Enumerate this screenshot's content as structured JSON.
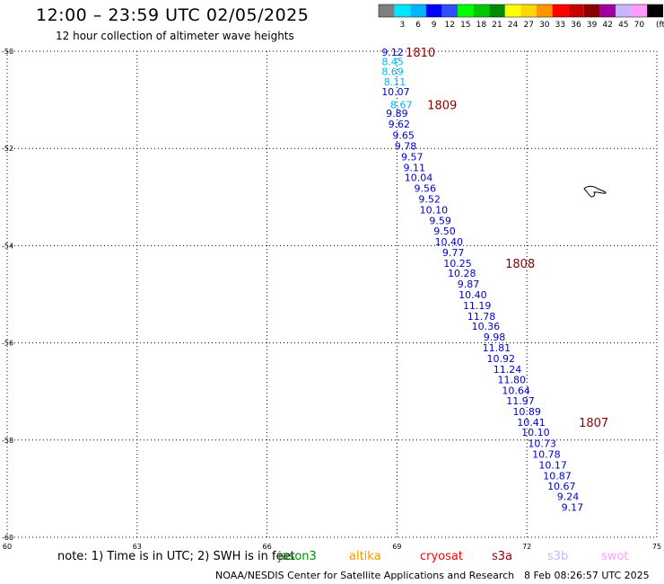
{
  "header": {
    "title": "12:00 – 23:59 UTC 02/05/2025",
    "subtitle": "12 hour collection of altimeter wave heights"
  },
  "colorbar": {
    "unit": "(ft)",
    "bins": [
      {
        "label": "",
        "color": "#7f7f7f"
      },
      {
        "label": "3",
        "color": "#00e5ff"
      },
      {
        "label": "6",
        "color": "#00b4ff"
      },
      {
        "label": "9",
        "color": "#0000ff"
      },
      {
        "label": "12",
        "color": "#3050ff"
      },
      {
        "label": "15",
        "color": "#00ff00"
      },
      {
        "label": "18",
        "color": "#00c800"
      },
      {
        "label": "21",
        "color": "#008c00"
      },
      {
        "label": "24",
        "color": "#ffff00"
      },
      {
        "label": "27",
        "color": "#ffd700"
      },
      {
        "label": "30",
        "color": "#ff9600"
      },
      {
        "label": "33",
        "color": "#ff0000"
      },
      {
        "label": "36",
        "color": "#c80000"
      },
      {
        "label": "39",
        "color": "#8c0000"
      },
      {
        "label": "42",
        "color": "#a000a0"
      },
      {
        "label": "45",
        "color": "#c8b4ff"
      },
      {
        "label": "70",
        "color": "#ff9cff"
      },
      {
        "label": "",
        "color": "#000000"
      }
    ]
  },
  "chart_data": {
    "type": "scatter",
    "xlabel": "",
    "ylabel": "",
    "xlim": [
      60,
      75
    ],
    "ylim": [
      -60,
      -50
    ],
    "xticks": [
      60,
      63,
      66,
      69,
      72,
      75
    ],
    "yticks": [
      -50,
      -52,
      -54,
      -56,
      -58,
      -60
    ],
    "grid": true,
    "points": [
      {
        "lon": 68.9,
        "lat": -50.02,
        "value": "9.12",
        "color": "#0000c8"
      },
      {
        "lon": 68.9,
        "lat": -50.21,
        "value": "8.45",
        "color": "#00b4ff"
      },
      {
        "lon": 68.9,
        "lat": -50.42,
        "value": "8.69",
        "color": "#00b4ff"
      },
      {
        "lon": 68.95,
        "lat": -50.63,
        "value": "8.11",
        "color": "#00b4ff"
      },
      {
        "lon": 68.97,
        "lat": -50.83,
        "value": "10.07",
        "color": "#0000c8"
      },
      {
        "lon": 69.1,
        "lat": -51.1,
        "value": "8.67",
        "color": "#00b4ff"
      },
      {
        "lon": 69.0,
        "lat": -51.28,
        "value": "9.89",
        "color": "#0000c8"
      },
      {
        "lon": 69.05,
        "lat": -51.5,
        "value": "9.62",
        "color": "#0000c8"
      },
      {
        "lon": 69.15,
        "lat": -51.73,
        "value": "9.65",
        "color": "#0000c8"
      },
      {
        "lon": 69.2,
        "lat": -51.95,
        "value": "9.78",
        "color": "#0000c8"
      },
      {
        "lon": 69.35,
        "lat": -52.17,
        "value": "9.57",
        "color": "#0000c8"
      },
      {
        "lon": 69.4,
        "lat": -52.39,
        "value": "9.11",
        "color": "#0000c8"
      },
      {
        "lon": 69.5,
        "lat": -52.6,
        "value": "10.04",
        "color": "#0000c8"
      },
      {
        "lon": 69.65,
        "lat": -52.82,
        "value": "9.56",
        "color": "#0000c8"
      },
      {
        "lon": 69.75,
        "lat": -53.04,
        "value": "9.52",
        "color": "#0000c8"
      },
      {
        "lon": 69.85,
        "lat": -53.26,
        "value": "10.10",
        "color": "#0000c8"
      },
      {
        "lon": 70.0,
        "lat": -53.48,
        "value": "9.59",
        "color": "#0000c8"
      },
      {
        "lon": 70.1,
        "lat": -53.7,
        "value": "9.50",
        "color": "#0000c8"
      },
      {
        "lon": 70.2,
        "lat": -53.92,
        "value": "10.40",
        "color": "#0000c8"
      },
      {
        "lon": 70.3,
        "lat": -54.14,
        "value": "9.77",
        "color": "#0000c8"
      },
      {
        "lon": 70.4,
        "lat": -54.36,
        "value": "10.25",
        "color": "#0000c8"
      },
      {
        "lon": 70.5,
        "lat": -54.57,
        "value": "10.28",
        "color": "#0000c8"
      },
      {
        "lon": 70.65,
        "lat": -54.79,
        "value": "9.87",
        "color": "#0000c8"
      },
      {
        "lon": 70.75,
        "lat": -55.01,
        "value": "10.40",
        "color": "#0000c8"
      },
      {
        "lon": 70.85,
        "lat": -55.23,
        "value": "11.19",
        "color": "#0000c8"
      },
      {
        "lon": 70.95,
        "lat": -55.45,
        "value": "11.78",
        "color": "#0000c8"
      },
      {
        "lon": 71.05,
        "lat": -55.66,
        "value": "10.36",
        "color": "#0000c8"
      },
      {
        "lon": 71.25,
        "lat": -55.88,
        "value": "9.98",
        "color": "#0000c8"
      },
      {
        "lon": 71.3,
        "lat": -56.1,
        "value": "11.81",
        "color": "#0000c8"
      },
      {
        "lon": 71.4,
        "lat": -56.32,
        "value": "10.92",
        "color": "#0000c8"
      },
      {
        "lon": 71.55,
        "lat": -56.54,
        "value": "11.24",
        "color": "#0000c8"
      },
      {
        "lon": 71.65,
        "lat": -56.76,
        "value": "11.80",
        "color": "#0000c8"
      },
      {
        "lon": 71.75,
        "lat": -56.98,
        "value": "10.64",
        "color": "#0000c8"
      },
      {
        "lon": 71.85,
        "lat": -57.19,
        "value": "11.97",
        "color": "#0000c8"
      },
      {
        "lon": 72.0,
        "lat": -57.41,
        "value": "10.89",
        "color": "#0000c8"
      },
      {
        "lon": 72.1,
        "lat": -57.63,
        "value": "10.41",
        "color": "#0000c8"
      },
      {
        "lon": 72.2,
        "lat": -57.84,
        "value": "10.10",
        "color": "#0000c8"
      },
      {
        "lon": 72.35,
        "lat": -58.07,
        "value": "10.73",
        "color": "#0000c8"
      },
      {
        "lon": 72.45,
        "lat": -58.29,
        "value": "10.78",
        "color": "#0000c8"
      },
      {
        "lon": 72.6,
        "lat": -58.51,
        "value": "10.17",
        "color": "#0000c8"
      },
      {
        "lon": 72.7,
        "lat": -58.73,
        "value": "10.87",
        "color": "#0000c8"
      },
      {
        "lon": 72.8,
        "lat": -58.95,
        "value": "10.67",
        "color": "#0000c8"
      },
      {
        "lon": 72.95,
        "lat": -59.16,
        "value": "9.24",
        "color": "#0000c8"
      },
      {
        "lon": 73.05,
        "lat": -59.38,
        "value": "9.17",
        "color": "#0000c8"
      }
    ],
    "pass_labels": [
      {
        "lon": 69.2,
        "lat": -50.02,
        "text": "1810"
      },
      {
        "lon": 69.7,
        "lat": -51.1,
        "text": "1809"
      },
      {
        "lon": 71.5,
        "lat": -54.36,
        "text": "1808"
      },
      {
        "lon": 73.2,
        "lat": -57.63,
        "text": "1807"
      }
    ],
    "pass_label_color": "#8b0000"
  },
  "footer": {
    "note": "note:  1) Time is in UTC;  2) SWH is in feet",
    "satellites": [
      {
        "name": "jason3",
        "color": "#008c00"
      },
      {
        "name": "altika",
        "color": "#ff9600"
      },
      {
        "name": "cryosat",
        "color": "#ff0000"
      },
      {
        "name": "s3a",
        "color": "#8b0000"
      },
      {
        "name": "s3b",
        "color": "#c8b4ff"
      },
      {
        "name": "swot",
        "color": "#ff9cff"
      }
    ],
    "credit": "NOAA/NESDIS Center for Satellite Applications and Research",
    "timestamp": "8 Feb 08:26:57 UTC 2025"
  }
}
